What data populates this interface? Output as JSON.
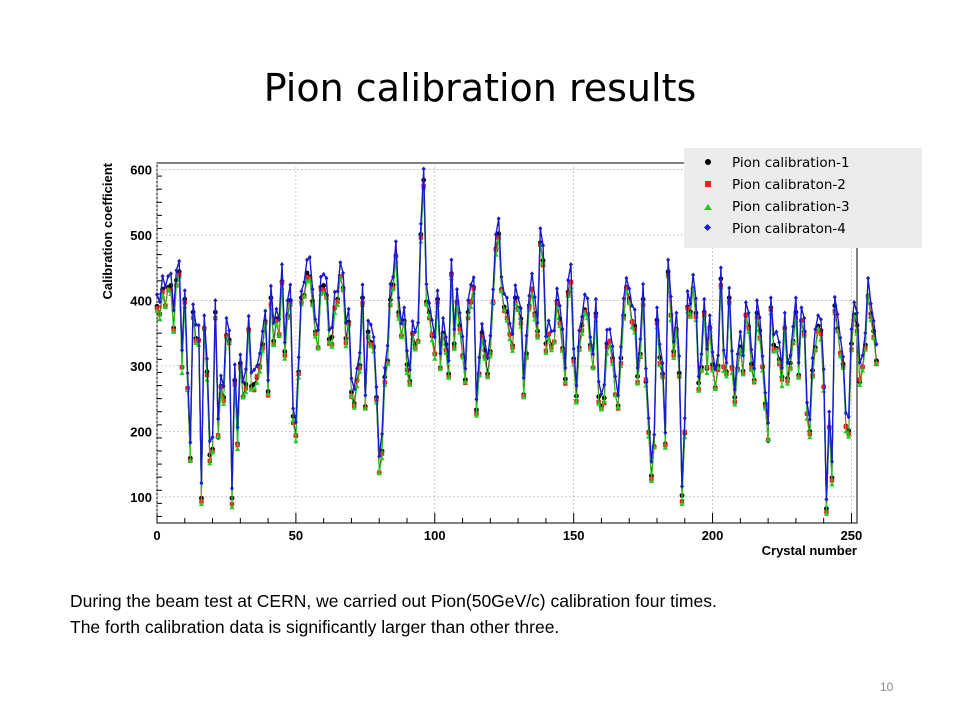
{
  "slide": {
    "title": "Pion calibration results",
    "body_lines": [
      "During the beam test at CERN, we carried out Pion(50GeV/c) calibration four times.",
      "The forth calibration data is significantly larger than other three."
    ],
    "page_number": "10"
  },
  "chart_data": {
    "type": "scatter",
    "title": "",
    "xlabel": "Crystal number",
    "ylabel": "Calibration coefficient",
    "xlim": [
      0,
      252
    ],
    "ylim": [
      60,
      610
    ],
    "xticks": [
      0,
      50,
      100,
      150,
      200,
      250
    ],
    "yticks": [
      100,
      200,
      300,
      400,
      500,
      600
    ],
    "grid": true,
    "legend_position": "top-right",
    "base_values": [
      395,
      380,
      415,
      395,
      420,
      420,
      360,
      430,
      440,
      300,
      400,
      270,
      160,
      380,
      345,
      340,
      95,
      360,
      290,
      160,
      175,
      380,
      195,
      270,
      250,
      350,
      340,
      95,
      280,
      180,
      300,
      255,
      270,
      360,
      270,
      270,
      285,
      300,
      330,
      370,
      260,
      400,
      340,
      370,
      350,
      430,
      320,
      380,
      400,
      220,
      195,
      290,
      400,
      410,
      440,
      440,
      400,
      350,
      330,
      420,
      420,
      410,
      340,
      340,
      390,
      400,
      440,
      420,
      340,
      370,
      260,
      240,
      280,
      300,
      400,
      240,
      350,
      340,
      330,
      250,
      140,
      170,
      280,
      310,
      400,
      420,
      470,
      380,
      350,
      370,
      300,
      280,
      350,
      330,
      340,
      500,
      580,
      400,
      380,
      350,
      320,
      400,
      300,
      350,
      330,
      290,
      440,
      330,
      400,
      360,
      320,
      280,
      380,
      400,
      420,
      230,
      290,
      350,
      320,
      290,
      320,
      400,
      480,
      500,
      420,
      390,
      380,
      350,
      330,
      400,
      390,
      370,
      260,
      320,
      390,
      420,
      380,
      350,
      490,
      460,
      330,
      350,
      330,
      340,
      400,
      370,
      330,
      280,
      410,
      430,
      310,
      250,
      330,
      360,
      390,
      380,
      330,
      300,
      380,
      250,
      240,
      250,
      330,
      340,
      310,
      260,
      240,
      310,
      380,
      420,
      400,
      370,
      360,
      280,
      320,
      400,
      280,
      200,
      130,
      180,
      370,
      310,
      290,
      180,
      440,
      380,
      320,
      360,
      290,
      100,
      200,
      390,
      380,
      420,
      380,
      270,
      300,
      380,
      300,
      360,
      300,
      270,
      300,
      430,
      300,
      290,
      400,
      300,
      250,
      300,
      330,
      290,
      380,
      360,
      300,
      280,
      380,
      350,
      300,
      240,
      190,
      390,
      330,
      330,
      310,
      280,
      360,
      280,
      300,
      340,
      380,
      290,
      370,
      350,
      230,
      200,
      290,
      330,
      360,
      350,
      270,
      80,
      210,
      130,
      390,
      360,
      320,
      300,
      210,
      200,
      330,
      380,
      360,
      280,
      300,
      330,
      410,
      380,
      350,
      310
    ]
  }
}
